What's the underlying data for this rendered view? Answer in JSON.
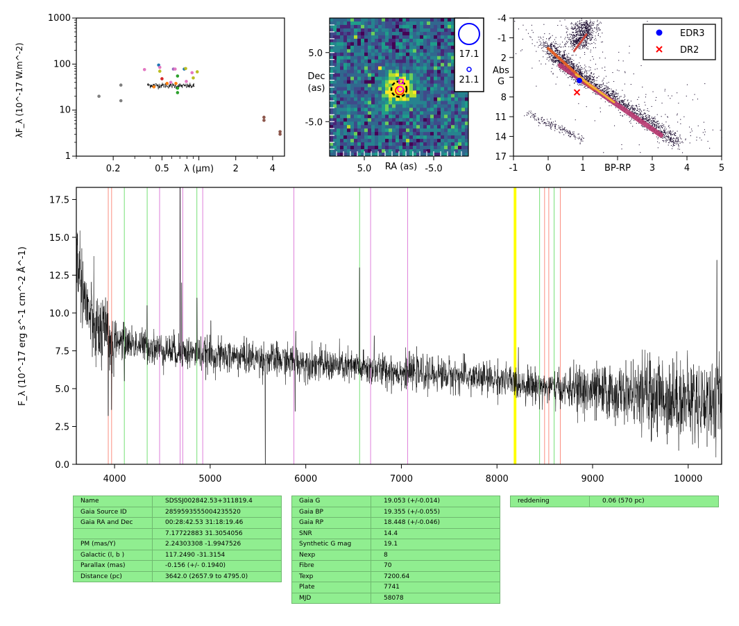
{
  "chart_data": [
    {
      "type": "scatter",
      "name": "sed",
      "xlabel": "λ (μm)",
      "ylabel": "λF_λ (10^-17 W.m^-2)",
      "xscale": "log",
      "yscale": "log",
      "xlim": [
        0.1,
        5.0
      ],
      "ylim": [
        1,
        1000
      ],
      "xticklabels": [
        "0.2",
        "0.5",
        "λ (μm)",
        "2",
        "4"
      ],
      "yticklabels": [
        "1",
        "10",
        "100",
        "1000"
      ],
      "points": [
        {
          "x": 0.153,
          "y": 20,
          "color": "#7f7f7f"
        },
        {
          "x": 0.231,
          "y": 35,
          "color": "#7f7f7f"
        },
        {
          "x": 0.231,
          "y": 16,
          "color": "#7f7f7f"
        },
        {
          "x": 0.36,
          "y": 76,
          "color": "#e377c2"
        },
        {
          "x": 0.43,
          "y": 32,
          "color": "#ff7f0e"
        },
        {
          "x": 0.47,
          "y": 95,
          "color": "#1f77b4"
        },
        {
          "x": 0.48,
          "y": 85,
          "color": "#e377c2"
        },
        {
          "x": 0.48,
          "y": 70,
          "color": "#bcbd22"
        },
        {
          "x": 0.5,
          "y": 48,
          "color": "#d62728"
        },
        {
          "x": 0.55,
          "y": 38,
          "color": "#ff7f0e"
        },
        {
          "x": 0.59,
          "y": 40,
          "color": "#e377c2"
        },
        {
          "x": 0.62,
          "y": 78,
          "color": "#9467bd"
        },
        {
          "x": 0.64,
          "y": 78,
          "color": "#e377c2"
        },
        {
          "x": 0.65,
          "y": 38,
          "color": "#ff7f0e"
        },
        {
          "x": 0.67,
          "y": 55,
          "color": "#2ca02c"
        },
        {
          "x": 0.67,
          "y": 30,
          "color": "#2ca02c"
        },
        {
          "x": 0.67,
          "y": 24,
          "color": "#2ca02c"
        },
        {
          "x": 0.76,
          "y": 78,
          "color": "#1f77b4"
        },
        {
          "x": 0.78,
          "y": 80,
          "color": "#bcbd22"
        },
        {
          "x": 0.79,
          "y": 42,
          "color": "#e377c2"
        },
        {
          "x": 0.88,
          "y": 65,
          "color": "#e377c2"
        },
        {
          "x": 0.9,
          "y": 50,
          "color": "#bcbd22"
        },
        {
          "x": 0.97,
          "y": 68,
          "color": "#bcbd22"
        },
        {
          "x": 3.4,
          "y": 7,
          "color": "#8c564b"
        },
        {
          "x": 3.4,
          "y": 6,
          "color": "#8c564b"
        },
        {
          "x": 4.6,
          "y": 3.4,
          "color": "#8c564b"
        },
        {
          "x": 4.6,
          "y": 3.0,
          "color": "#8c564b"
        }
      ],
      "spectrum_range": [
        0.38,
        0.92
      ],
      "spectrum_level": 35
    },
    {
      "type": "heatmap",
      "name": "cutout",
      "xlabel": "RA (as)",
      "ylabel": "Dec (as)",
      "xlim": [
        10,
        -10
      ],
      "ylim": [
        -10,
        10
      ],
      "xticklabels": [
        "5.0",
        "-5.0"
      ],
      "yticklabels": [
        "5.0",
        "-5.0"
      ],
      "source_center": [
        0,
        -0.3
      ],
      "legend": [
        "17.1",
        "21.1"
      ]
    },
    {
      "type": "scatter",
      "name": "hrd",
      "xlabel": "BP-RP",
      "ylabel": "Abs G",
      "xlim": [
        -1,
        5
      ],
      "ylim": [
        17,
        -4
      ],
      "xticklabels": [
        "-1",
        "0",
        "1",
        "BP-RP",
        "3",
        "4",
        "5"
      ],
      "yticklabels": [
        "-4",
        "-1",
        "2",
        "Abs G",
        "8",
        "11",
        "14",
        "17"
      ],
      "series": [
        {
          "name": "EDR3",
          "x": 0.9,
          "y": 5.5,
          "color": "#0000ff",
          "marker": "circle"
        },
        {
          "name": "DR2",
          "x": 0.83,
          "y": 7.3,
          "color": "#ff0000",
          "marker": "x"
        }
      ],
      "legend_position": "top-right"
    },
    {
      "type": "line",
      "name": "spectrum",
      "xlabel": "",
      "ylabel": "F_λ (10^-17 erg s^-1 cm^-2 Å^-1)",
      "xlim": [
        3600,
        10350
      ],
      "ylim": [
        0,
        18.3
      ],
      "xticks": [
        4000,
        5000,
        6000,
        7000,
        8000,
        9000,
        10000
      ],
      "yticks": [
        0.0,
        2.5,
        5.0,
        7.5,
        10.0,
        12.5,
        15.0,
        17.5
      ],
      "continuum": [
        [
          3600,
          14.0
        ],
        [
          3700,
          10.5
        ],
        [
          3800,
          8.8
        ],
        [
          4000,
          8.2
        ],
        [
          4500,
          7.6
        ],
        [
          5000,
          7.2
        ],
        [
          5500,
          7.0
        ],
        [
          6000,
          6.7
        ],
        [
          6500,
          6.4
        ],
        [
          7000,
          6.1
        ],
        [
          7500,
          5.9
        ],
        [
          8000,
          5.6
        ],
        [
          8500,
          5.1
        ],
        [
          9000,
          4.8
        ],
        [
          9500,
          4.6
        ],
        [
          10000,
          4.3
        ],
        [
          10350,
          4.1
        ]
      ],
      "features": [
        [
          3934,
          3.2,
          "abs"
        ],
        [
          3968,
          3.6,
          "abs"
        ],
        [
          4102,
          5.5,
          "abs"
        ],
        [
          4340,
          10.5,
          "em"
        ],
        [
          4686,
          18.3,
          "em"
        ],
        [
          4700,
          12.0,
          "em"
        ],
        [
          4861,
          11.0,
          "em"
        ],
        [
          5007,
          9.5,
          "em"
        ],
        [
          5577,
          13.0,
          "em"
        ],
        [
          5577,
          0.0,
          "abs"
        ],
        [
          5890,
          3.5,
          "abs"
        ],
        [
          5895,
          8.8,
          "em"
        ],
        [
          6563,
          13.0,
          "em"
        ],
        [
          6717,
          8.5,
          "em"
        ],
        [
          10300,
          13.5,
          "em"
        ]
      ],
      "lines": [
        {
          "x": 3934,
          "color": "#fa8072"
        },
        {
          "x": 3969,
          "color": "#fa8072"
        },
        {
          "x": 4102,
          "color": "#66dd66"
        },
        {
          "x": 4341,
          "color": "#66dd66"
        },
        {
          "x": 4471,
          "color": "#da70d6"
        },
        {
          "x": 4686,
          "color": "#da70d6"
        },
        {
          "x": 4713,
          "color": "#da70d6"
        },
        {
          "x": 4861,
          "color": "#66dd66"
        },
        {
          "x": 4922,
          "color": "#da70d6"
        },
        {
          "x": 5876,
          "color": "#da70d6"
        },
        {
          "x": 6563,
          "color": "#66dd66"
        },
        {
          "x": 6678,
          "color": "#da70d6"
        },
        {
          "x": 7065,
          "color": "#da70d6"
        },
        {
          "x": 8183,
          "color": "#ffff00"
        },
        {
          "x": 8195,
          "color": "#ffff00"
        },
        {
          "x": 8446,
          "color": "#66dd66"
        },
        {
          "x": 8498,
          "color": "#fa8072"
        },
        {
          "x": 8542,
          "color": "#fa8072"
        },
        {
          "x": 8598,
          "color": "#66dd66"
        },
        {
          "x": 8662,
          "color": "#fa8072"
        }
      ]
    }
  ],
  "tables": {
    "t1": [
      {
        "k": "Name",
        "v": "SDSSJ002842.53+311819.4"
      },
      {
        "k": "Gaia Source ID",
        "v": "2859593555004235520"
      },
      {
        "k": "Gaia RA and Dec",
        "v": "00:28:42.53    31:18:19.46"
      },
      {
        "k": "",
        "v": "7.17722883    31.3054056"
      },
      {
        "k": "PM (mas/Y)",
        "v": "2.24303308    -1.9947526"
      },
      {
        "k": "Galactic (l, b )",
        "v": "117.2490    -31.3154"
      },
      {
        "k": "Parallax (mas)",
        "v": "-0.156 (+/- 0.1940)"
      },
      {
        "k": "Distance (pc)",
        "v": "3642.0 (2657.9 to 4795.0)"
      }
    ],
    "t2": [
      {
        "k": "Gaia G",
        "v": "19.053 (+/-0.014)"
      },
      {
        "k": "Gaia BP",
        "v": "19.355 (+/-0.055)"
      },
      {
        "k": "Gaia RP",
        "v": "18.448 (+/-0.046)"
      },
      {
        "k": "SNR",
        "v": "14.4"
      },
      {
        "k": "Synthetic G mag",
        "v": "19.1"
      },
      {
        "k": "Nexp",
        "v": "8"
      },
      {
        "k": "Fibre",
        "v": "70"
      },
      {
        "k": "Texp",
        "v": "7200.64"
      },
      {
        "k": "Plate",
        "v": "7741"
      },
      {
        "k": "MJD",
        "v": "58078"
      }
    ],
    "t3": [
      {
        "k": "reddening",
        "v": "0.06 (570 pc)"
      }
    ]
  }
}
